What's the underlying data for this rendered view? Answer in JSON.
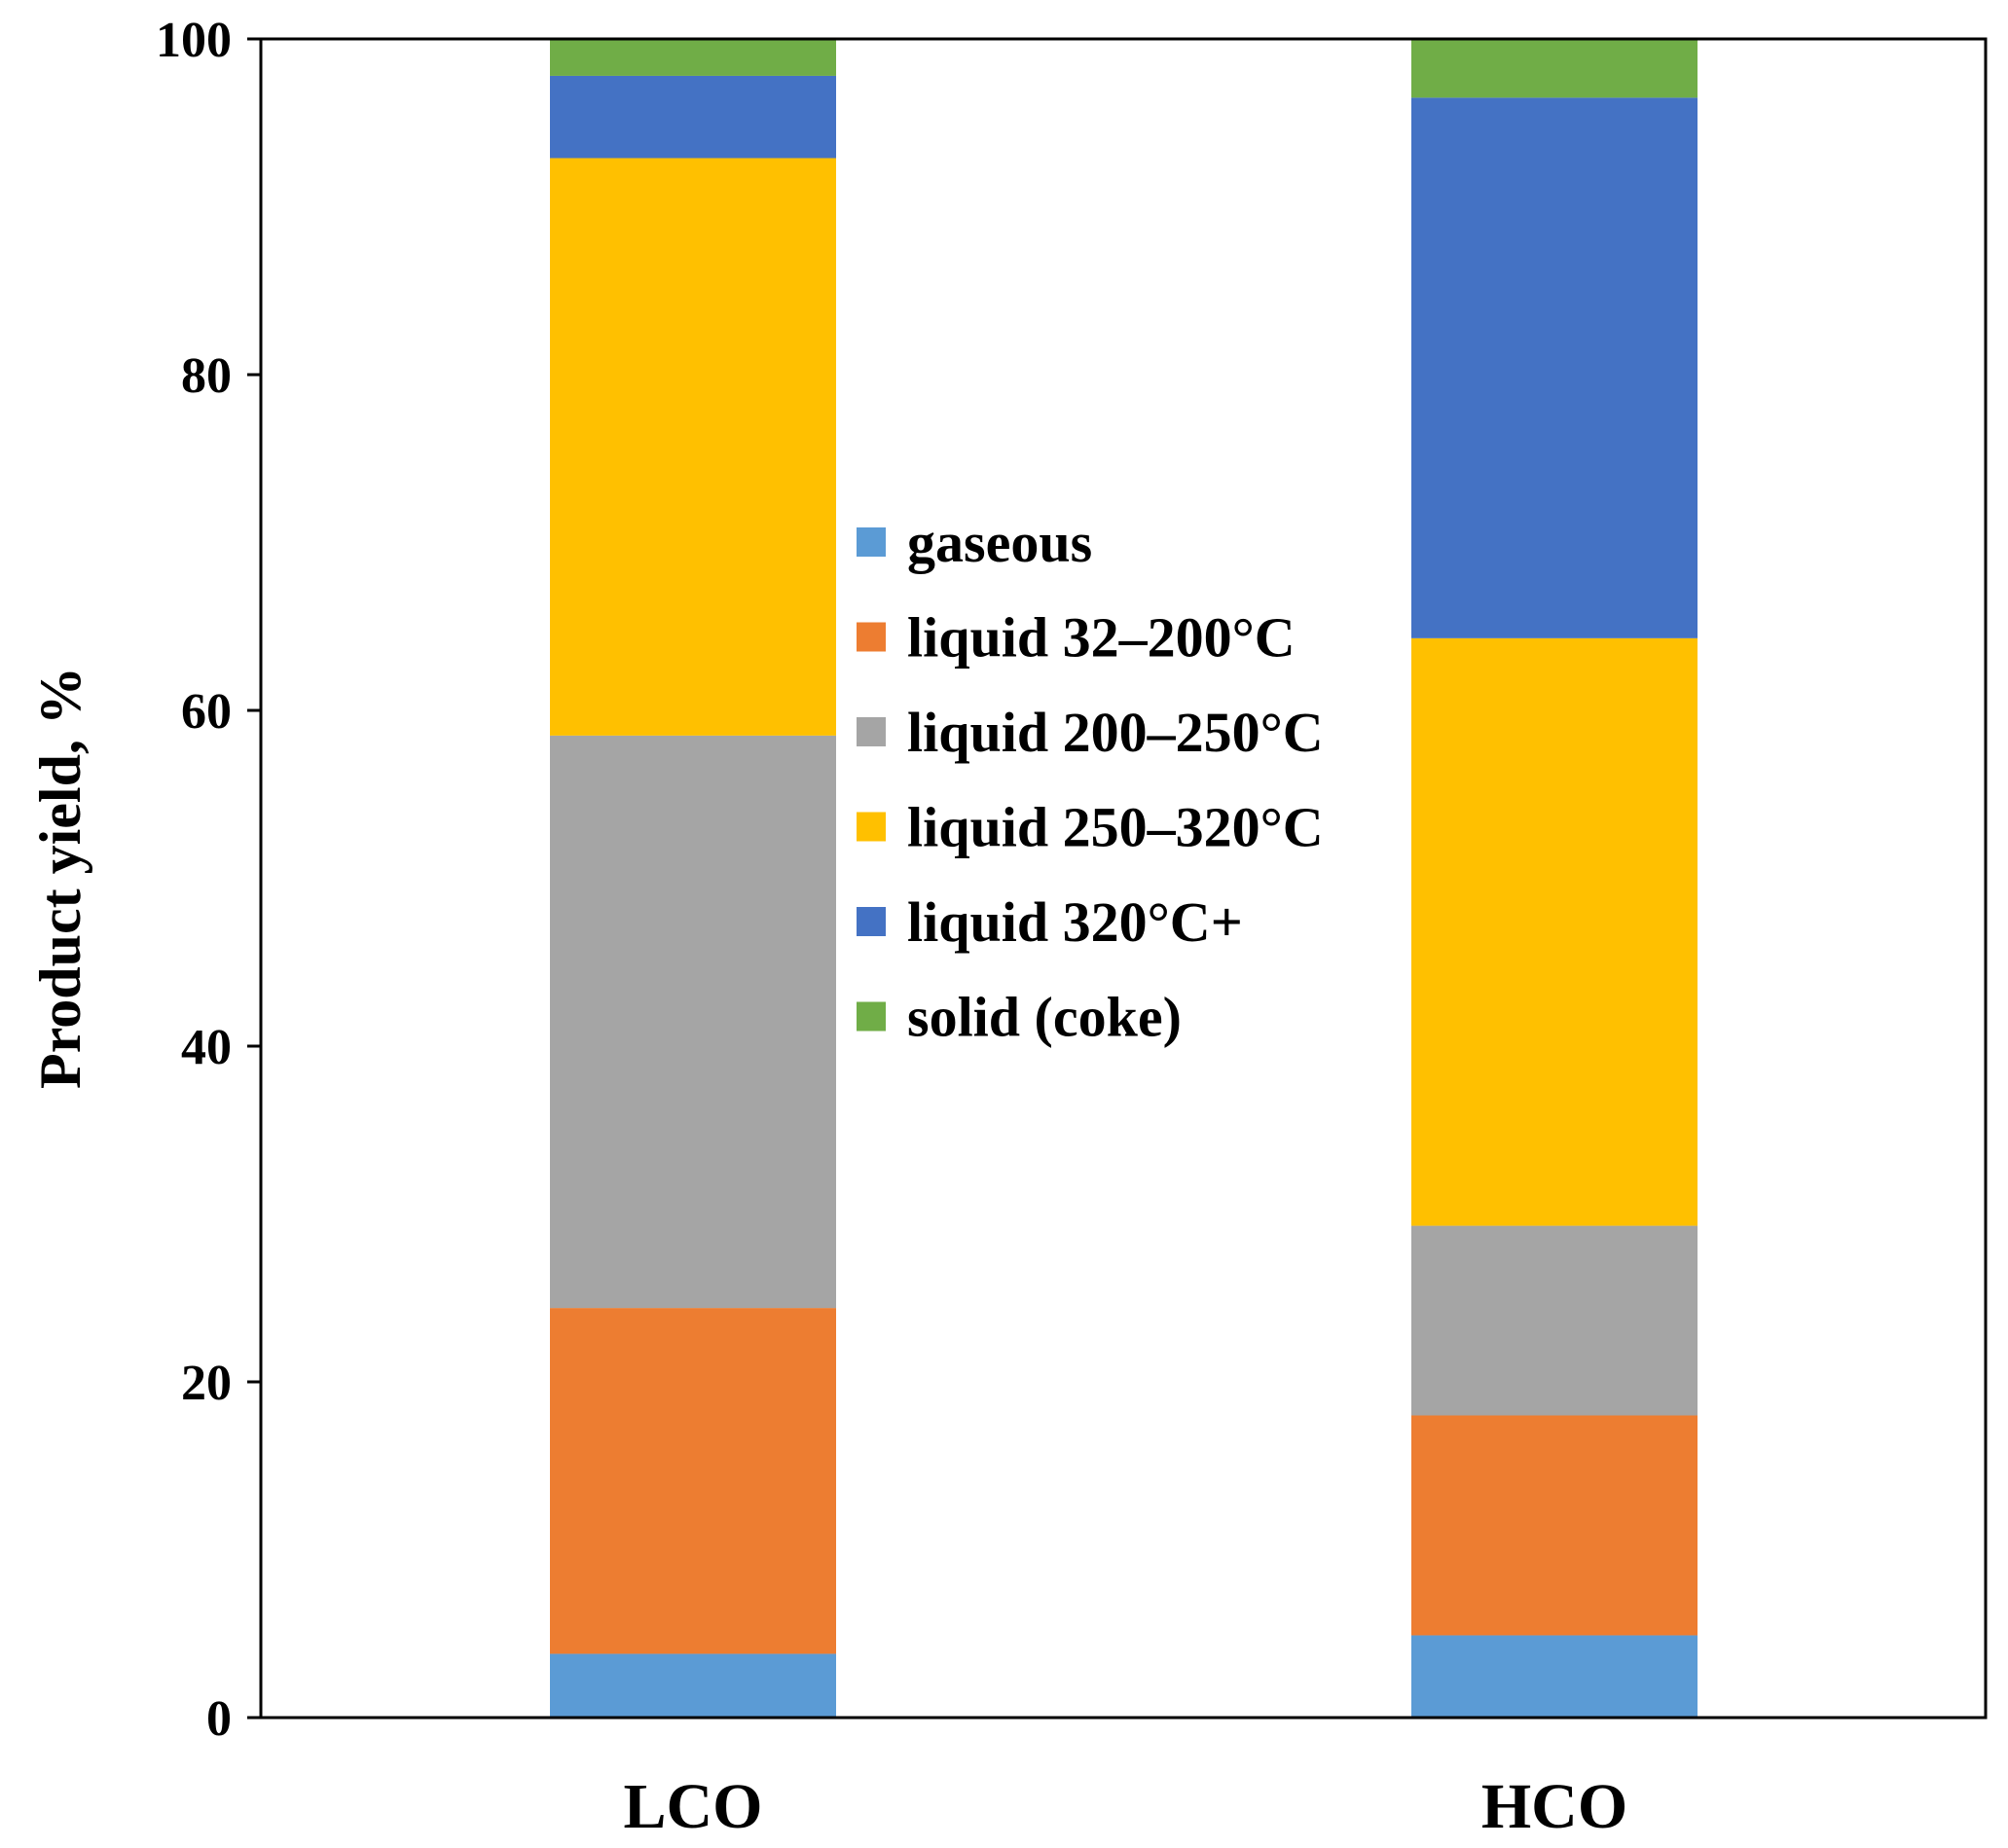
{
  "chart_data": {
    "type": "bar",
    "stacked": true,
    "title": "",
    "xlabel": "",
    "ylabel": "Product yield, %",
    "ylim": [
      0,
      100
    ],
    "yticks": [
      0,
      20,
      40,
      60,
      80,
      100
    ],
    "grid": false,
    "legend_position": "center",
    "categories": [
      "LCO",
      "HCO"
    ],
    "series": [
      {
        "name": "gaseous",
        "color": "#5b9bd5",
        "values": [
          3.8,
          4.9
        ]
      },
      {
        "name": "liquid 32–200°C",
        "color": "#ed7d31",
        "values": [
          20.6,
          13.1
        ]
      },
      {
        "name": "liquid 200–250°C",
        "color": "#a5a5a5",
        "values": [
          34.1,
          11.3
        ]
      },
      {
        "name": "liquid 250–320°C",
        "color": "#ffc000",
        "values": [
          34.4,
          35.0
        ]
      },
      {
        "name": "liquid 320°C+",
        "color": "#4472c4",
        "values": [
          4.9,
          32.2
        ]
      },
      {
        "name": "solid (coke)",
        "color": "#70ad47",
        "values": [
          2.2,
          3.5
        ]
      }
    ]
  }
}
